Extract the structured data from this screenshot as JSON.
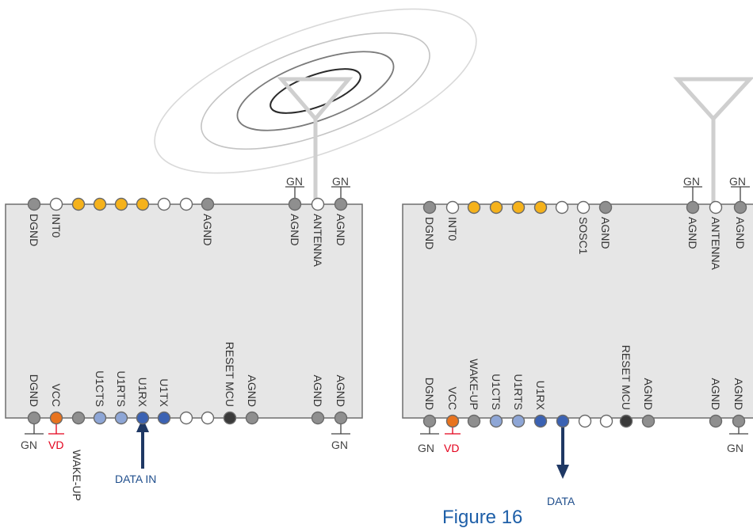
{
  "colors": {
    "gray_pin": "#8f8f8f",
    "yellow_pin": "#f5b21b",
    "white_pin": "#ffffff",
    "light_blue_pin": "#8ea6d6",
    "blue_pin": "#3b62b3",
    "orange_pin": "#e8731e",
    "black_pin": "#3a3a3a",
    "arrow": "#1f3864",
    "label_blue": "#1f4e8c",
    "vd_red": "#e3001b",
    "board_fill": "#e6e6e6",
    "antenna": "#cfcfcf"
  },
  "left_module": {
    "top_pins": [
      {
        "color": "gray",
        "label": "DGND"
      },
      {
        "color": "white",
        "label": "INT0"
      },
      {
        "color": "yellow",
        "label": ""
      },
      {
        "color": "yellow",
        "label": ""
      },
      {
        "color": "yellow",
        "label": ""
      },
      {
        "color": "yellow",
        "label": ""
      },
      {
        "color": "white",
        "label": ""
      },
      {
        "color": "white",
        "label": ""
      },
      {
        "color": "gray",
        "label": "AGND"
      },
      {
        "color": "gray",
        "label": "AGND"
      },
      {
        "color": "white",
        "label": "ANTENNA"
      },
      {
        "color": "gray",
        "label": "AGND"
      }
    ],
    "bottom_pins": [
      {
        "color": "gray",
        "label": "DGND"
      },
      {
        "color": "orange",
        "label": "VCC"
      },
      {
        "color": "gray",
        "label": ""
      },
      {
        "color": "light_blue",
        "label": "U1CTS"
      },
      {
        "color": "light_blue",
        "label": "U1RTS"
      },
      {
        "color": "blue",
        "label": "U1RX"
      },
      {
        "color": "blue",
        "label": "U1TX"
      },
      {
        "color": "white",
        "label": ""
      },
      {
        "color": "white",
        "label": ""
      },
      {
        "color": "black",
        "label": "RESET MCU"
      },
      {
        "color": "gray",
        "label": "AGND"
      },
      {
        "color": "gray",
        "label": "AGND"
      },
      {
        "color": "gray",
        "label": "AGND"
      }
    ],
    "gnd_top_left": "GN",
    "gnd_top_right": "GN",
    "gnd_bottom_left": "GN",
    "gnd_bottom_right": "GN",
    "vd_label": "VD",
    "wake_up_label": "WAKE-UP",
    "arrow_label": "DATA IN"
  },
  "right_module": {
    "top_pins": [
      {
        "color": "gray",
        "label": "DGND"
      },
      {
        "color": "white",
        "label": "INT0"
      },
      {
        "color": "yellow",
        "label": ""
      },
      {
        "color": "yellow",
        "label": ""
      },
      {
        "color": "yellow",
        "label": ""
      },
      {
        "color": "yellow",
        "label": ""
      },
      {
        "color": "white",
        "label": ""
      },
      {
        "color": "white",
        "label": "SOSC1"
      },
      {
        "color": "gray",
        "label": "AGND"
      },
      {
        "color": "gray",
        "label": "AGND"
      },
      {
        "color": "white",
        "label": "ANTENNA"
      },
      {
        "color": "gray",
        "label": "AGND"
      }
    ],
    "bottom_pins": [
      {
        "color": "gray",
        "label": "DGND"
      },
      {
        "color": "orange",
        "label": "VCC"
      },
      {
        "color": "gray",
        "label": "WAKE-UP"
      },
      {
        "color": "light_blue",
        "label": "U1CTS"
      },
      {
        "color": "light_blue",
        "label": "U1RTS"
      },
      {
        "color": "blue",
        "label": "U1RX"
      },
      {
        "color": "blue",
        "label": ""
      },
      {
        "color": "white",
        "label": ""
      },
      {
        "color": "white",
        "label": ""
      },
      {
        "color": "black",
        "label": "RESET MCU"
      },
      {
        "color": "gray",
        "label": "AGND"
      },
      {
        "color": "gray",
        "label": "AGND"
      },
      {
        "color": "gray",
        "label": "AGND"
      }
    ],
    "gnd_top_left": "GN",
    "gnd_top_right": "GN",
    "gnd_bottom_left": "GN",
    "gnd_bottom_right": "GN",
    "vd_label": "VD",
    "arrow_label": "DATA"
  },
  "caption": "Figure 16"
}
